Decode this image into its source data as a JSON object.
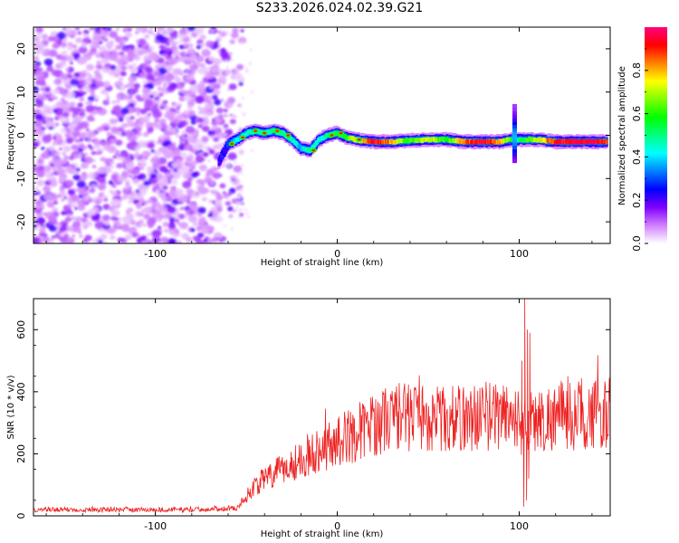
{
  "title": "S233.2026.024.02.39.G21",
  "chart_data": [
    {
      "type": "heatmap",
      "xlabel": "Height of straight line (km)",
      "ylabel": "Frequency (Hz)",
      "xlim": [
        -167,
        150
      ],
      "ylim": [
        -25,
        25
      ],
      "xticks": [
        -100,
        0,
        100
      ],
      "xtick_labels": [
        "-100",
        "0",
        "100"
      ],
      "yticks": [
        20,
        10,
        0,
        -10,
        -20
      ],
      "ytick_labels": [
        "20",
        "10",
        "0",
        "-10",
        "-20"
      ],
      "colorbar": {
        "label": "Normalized spectral amplitude",
        "range": [
          0,
          1
        ],
        "ticks": [
          0.0,
          0.2,
          0.4,
          0.6,
          0.8
        ],
        "tick_labels": [
          "0.0",
          "0.2",
          "0.4",
          "0.6",
          "0.8"
        ],
        "colors": [
          "#ffffff",
          "#d080ff",
          "#8000ff",
          "#0000ff",
          "#0080ff",
          "#00ffff",
          "#00ff80",
          "#00ff00",
          "#80ff00",
          "#ffff00",
          "#ff8000",
          "#ff0000",
          "#ff0080"
        ]
      },
      "ridge": {
        "x": [
          -65,
          -60,
          -55,
          -50,
          -45,
          -40,
          -35,
          -30,
          -25,
          -20,
          -15,
          -10,
          -5,
          0,
          5,
          10,
          20,
          30,
          40,
          50,
          60,
          70,
          80,
          90,
          95,
          100,
          110,
          120,
          130,
          140,
          148
        ],
        "y": [
          -6,
          -2,
          -1,
          0.5,
          1,
          0.5,
          1,
          0.5,
          -1,
          -3,
          -3.5,
          -1,
          0,
          0.5,
          -0.5,
          -1,
          -1.5,
          -1.5,
          -1.2,
          -1,
          -1,
          -1.5,
          -1.5,
          -1.5,
          -1,
          -1,
          -1,
          -1.5,
          -1.5,
          -1.5,
          -1.5
        ],
        "amplitude": [
          0.2,
          0.3,
          0.4,
          0.45,
          0.5,
          0.45,
          0.5,
          0.5,
          0.45,
          0.4,
          0.5,
          0.45,
          0.5,
          0.55,
          0.6,
          0.7,
          0.95,
          0.8,
          0.6,
          0.75,
          0.55,
          0.85,
          0.95,
          0.8,
          0.6,
          0.5,
          0.7,
          0.9,
          0.95,
          0.95,
          0.9
        ]
      },
      "noise_region_x": [
        -167,
        -60
      ]
    },
    {
      "type": "line",
      "xlabel": "Height of straight line (km)",
      "ylabel": "SNR (10 * v/v)",
      "xlim": [
        -167,
        150
      ],
      "ylim": [
        0,
        700
      ],
      "xticks": [
        -100,
        0,
        100
      ],
      "xtick_labels": [
        "-100",
        "0",
        "100"
      ],
      "yticks": [
        0,
        200,
        400,
        600
      ],
      "ytick_labels": [
        "0",
        "200",
        "400",
        "600"
      ],
      "color": "#ee2222",
      "trend": {
        "x": [
          -167,
          -120,
          -80,
          -55,
          -45,
          -30,
          -15,
          0,
          15,
          30,
          45,
          60,
          80,
          95,
          100,
          105,
          120,
          150
        ],
        "y": [
          20,
          20,
          20,
          25,
          100,
          150,
          200,
          240,
          280,
          320,
          320,
          310,
          320,
          330,
          300,
          300,
          320,
          330
        ]
      },
      "spikes": [
        {
          "x": 101.5,
          "y": 500
        },
        {
          "x": 102.5,
          "y": 30
        },
        {
          "x": 103,
          "y": 700
        },
        {
          "x": 104,
          "y": 50
        },
        {
          "x": 104.5,
          "y": 600
        },
        {
          "x": 105.2,
          "y": 120
        },
        {
          "x": 105.8,
          "y": 590
        },
        {
          "x": 106.5,
          "y": 260
        }
      ]
    }
  ]
}
